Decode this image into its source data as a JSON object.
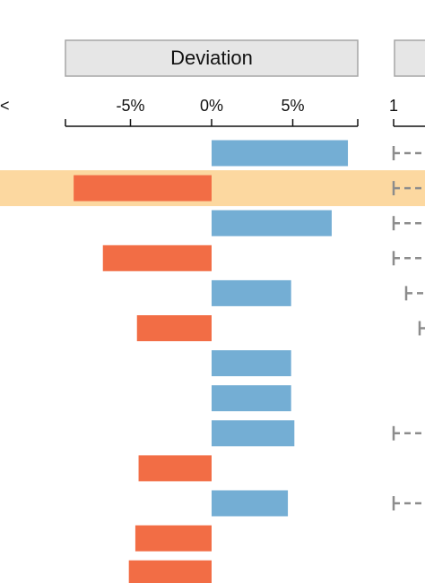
{
  "colors": {
    "positive": "#74aed4",
    "negative": "#f26d45",
    "highlight": "#fcd8a0",
    "panel_header_fill": "#e6e6e6",
    "panel_header_stroke": "#a6a6a6",
    "axis": "#111111",
    "whisker": "#8c8c8c"
  },
  "chart_data": {
    "type": "bar",
    "orientation": "horizontal",
    "panel_title": "Deviation",
    "xlim": [
      -9,
      9
    ],
    "x_ticks": [
      -5,
      0,
      5
    ],
    "x_tick_labels": [
      "-5%",
      "0%",
      "5%"
    ],
    "values": [
      8.4,
      -8.5,
      7.4,
      -6.7,
      4.9,
      -4.6,
      4.9,
      4.9,
      5.1,
      -4.5,
      4.7,
      -4.7,
      -5.1
    ],
    "highlighted_row": 1,
    "clipped_left_fragment": "<",
    "right_panel": {
      "first_tick_label": "1",
      "whisker_rows": [
        0,
        1,
        2,
        3,
        4,
        5,
        8,
        10
      ]
    },
    "grid": false,
    "legend": "none"
  }
}
